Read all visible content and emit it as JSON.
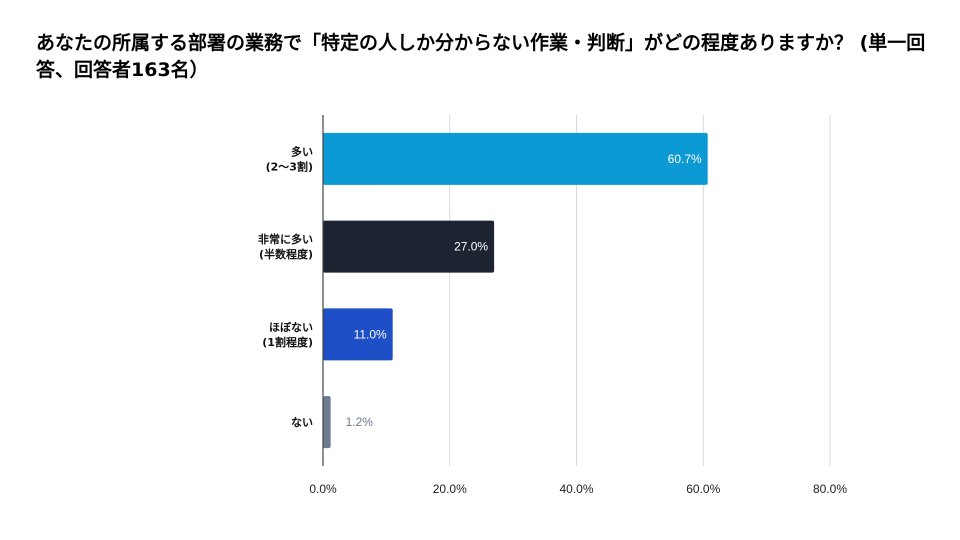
{
  "chart_data": {
    "type": "bar",
    "orientation": "horizontal",
    "title": "あなたの所属する部署の業務で「特定の人しか分からない作業・判断」がどの程度ありますか？ (単一回答、回答者163名）",
    "categories": [
      [
        "多い",
        "(2〜3割)"
      ],
      [
        "非常に多い",
        "(半数程度)"
      ],
      [
        "ほぼない",
        "(1割程度)"
      ],
      [
        "ない"
      ]
    ],
    "values": [
      60.7,
      27.0,
      11.0,
      1.2
    ],
    "data_labels": [
      "60.7%",
      "27.0%",
      "11.0%",
      "1.2%"
    ],
    "colors": [
      "#0b9ad4",
      "#1d2331",
      "#1f4fc7",
      "#6d7a90"
    ],
    "data_label_colors": [
      "#ffffff",
      "#ffffff",
      "#ffffff",
      "#6d7a90"
    ],
    "data_label_position": [
      "inside-end",
      "inside-end",
      "inside-end",
      "outside-end"
    ],
    "xlim": [
      0,
      80
    ],
    "x_ticks": [
      0,
      20,
      40,
      60,
      80
    ],
    "x_tick_labels": [
      "0.0%",
      "20.0%",
      "40.0%",
      "60.0%",
      "80.0%"
    ],
    "xlabel": "",
    "ylabel": "",
    "grid": true,
    "legend": "none"
  }
}
